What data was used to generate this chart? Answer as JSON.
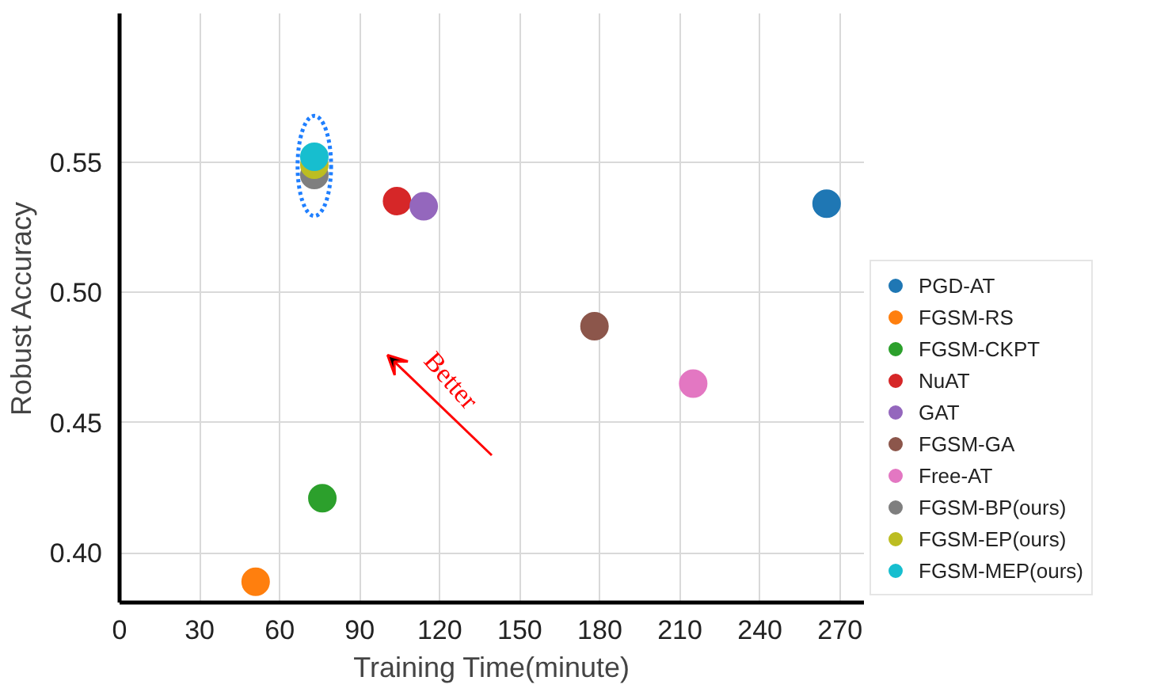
{
  "chart_data": {
    "type": "scatter",
    "xlabel": "Training Time(minute)",
    "ylabel": "Robust Accuracy",
    "annotations": [
      "Better"
    ],
    "xlim": [
      0,
      279
    ],
    "xticks": [
      0,
      30,
      60,
      90,
      120,
      150,
      180,
      210,
      240,
      270
    ],
    "ylim": [
      0.381,
      0.607
    ],
    "yticks": [
      {
        "value": 0.4,
        "label": "0.40"
      },
      0.45,
      {
        "value": 0.5,
        "label": "0.50"
      },
      0.55
    ],
    "grid": true,
    "legend": "right",
    "marker": "circle",
    "series": [
      {
        "name": "PGD-AT",
        "color": "#1f77b4",
        "x": [
          265
        ],
        "values": [
          0.534
        ]
      },
      {
        "name": "FGSM-RS",
        "color": "#ff7f0e",
        "x": [
          51
        ],
        "values": [
          0.389
        ]
      },
      {
        "name": "FGSM-CKPT",
        "color": "#2ca02c",
        "x": [
          76
        ],
        "values": [
          0.421
        ]
      },
      {
        "name": "NuAT",
        "color": "#d62728",
        "x": [
          104
        ],
        "values": [
          0.535
        ]
      },
      {
        "name": "GAT",
        "color": "#9467bd",
        "x": [
          114
        ],
        "values": [
          0.533
        ]
      },
      {
        "name": "FGSM-GA",
        "color": "#8c564b",
        "x": [
          178
        ],
        "values": [
          0.487
        ]
      },
      {
        "name": "Free-AT",
        "color": "#e377c2",
        "x": [
          215
        ],
        "values": [
          0.465
        ]
      },
      {
        "name": "FGSM-BP(ours)",
        "color": "#7f7f7f",
        "x": [
          73
        ],
        "values": [
          0.545
        ]
      },
      {
        "name": "FGSM-EP(ours)",
        "color": "#bcbd22",
        "x": [
          73
        ],
        "values": [
          0.549
        ]
      },
      {
        "name": "FGSM-MEP(ours)",
        "color": "#17becf",
        "x": [
          73
        ],
        "values": [
          0.552
        ]
      }
    ]
  }
}
